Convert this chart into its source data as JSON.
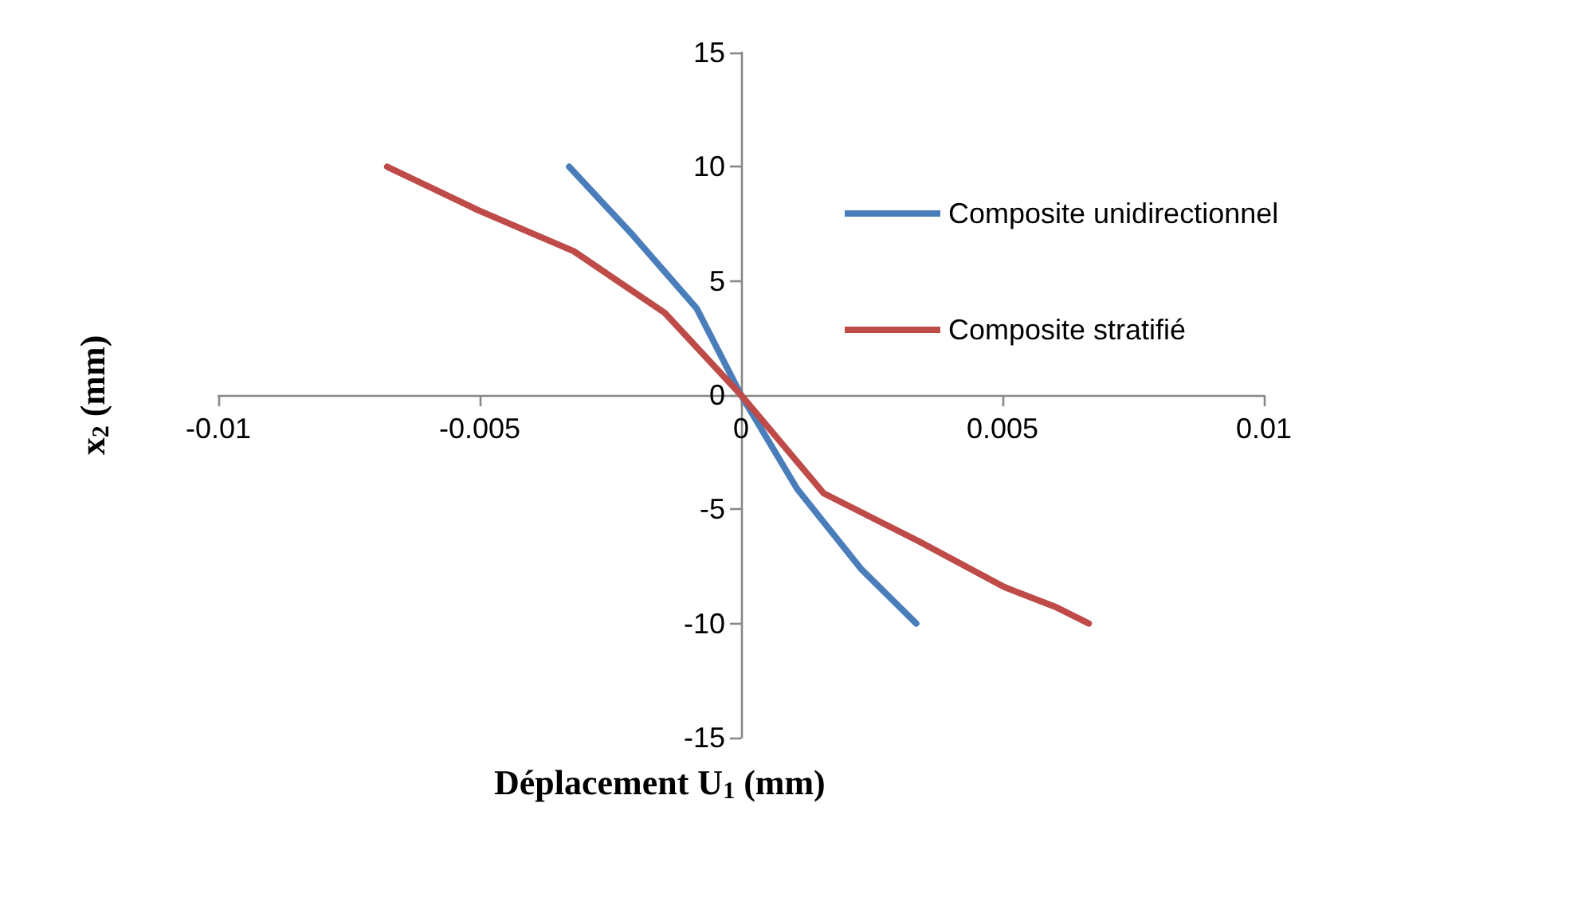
{
  "chart_data": {
    "type": "line",
    "xlabel": "Déplacement U$_{1}$ (mm)",
    "ylabel": "x$_{2}$ (mm)",
    "xlim": [
      -0.01,
      0.01
    ],
    "xticks": [
      -0.01,
      -0.005,
      0,
      0.005,
      0.01
    ],
    "ylim": [
      -15,
      15
    ],
    "yticks": [
      -15,
      -10,
      -5,
      0,
      5,
      10,
      15
    ],
    "legend": "right",
    "marker": "none",
    "line_style": "solid",
    "series": [
      {
        "name": "Composite unidirectionnel",
        "color": "#4a7ebb",
        "x": [
          -0.00329,
          -0.00207,
          -0.00085,
          0,
          0.00107,
          0.00229,
          0.00335
        ],
        "values": [
          10,
          7.0,
          3.8,
          0,
          -4.1,
          -7.6,
          -10
        ]
      },
      {
        "name": "Composite stratifié",
        "color": "#be4b48",
        "x": [
          -0.00677,
          -0.00503,
          -0.0032,
          -0.00146,
          0,
          0.00158,
          0.0034,
          0.00503,
          0.00604,
          0.00665
        ],
        "values": [
          10,
          8.1,
          6.3,
          3.6,
          0,
          -4.3,
          -6.4,
          -8.4,
          -9.3,
          -10
        ]
      }
    ]
  }
}
